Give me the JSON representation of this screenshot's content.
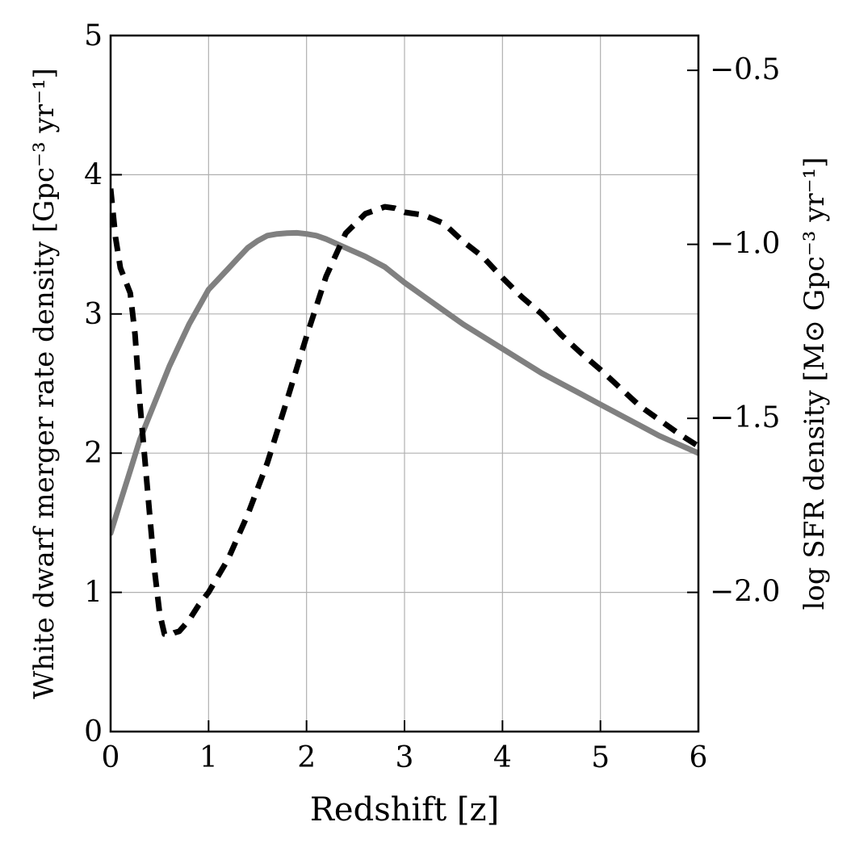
{
  "chart_data": {
    "type": "line",
    "xlabel": "Redshift [z]",
    "ylabel_left": "White dwarf merger rate density [Gpc⁻³ yr⁻¹]",
    "ylabel_right": "log SFR density [M⊙ Gpc⁻³ yr⁻¹]",
    "xlim": [
      0,
      6
    ],
    "ylim_left": [
      0,
      5
    ],
    "ylim_right": [
      -2.4,
      -0.4
    ],
    "x_ticks": [
      0,
      1,
      2,
      3,
      4,
      5,
      6
    ],
    "y_left_ticks": [
      0,
      1,
      2,
      3,
      4,
      5
    ],
    "y_right_ticks": [
      -2.0,
      -1.5,
      -1.0,
      -0.5
    ],
    "x_tick_labels": [
      "0",
      "1",
      "2",
      "3",
      "4",
      "5",
      "6"
    ],
    "y_left_tick_labels": [
      "0",
      "1",
      "2",
      "3",
      "4",
      "5"
    ],
    "y_right_tick_labels": [
      "−2.0",
      "−1.5",
      "−1.0",
      "−0.5"
    ],
    "grid": true,
    "series": [
      {
        "axis": "right",
        "color": "#808080",
        "style": "solid",
        "x": [
          0.0,
          0.1,
          0.2,
          0.3,
          0.4,
          0.5,
          0.6,
          0.7,
          0.8,
          0.9,
          1.0,
          1.1,
          1.2,
          1.3,
          1.4,
          1.5,
          1.6,
          1.7,
          1.8,
          1.9,
          2.0,
          2.1,
          2.2,
          2.4,
          2.6,
          2.8,
          3.0,
          3.2,
          3.4,
          3.6,
          3.8,
          4.0,
          4.2,
          4.4,
          4.6,
          4.8,
          5.0,
          5.2,
          5.4,
          5.6,
          5.8,
          6.0
        ],
        "y": [
          -1.83,
          -1.74,
          -1.65,
          -1.56,
          -1.49,
          -1.42,
          -1.35,
          -1.29,
          -1.23,
          -1.18,
          -1.13,
          -1.1,
          -1.07,
          -1.04,
          -1.01,
          -0.99,
          -0.975,
          -0.97,
          -0.968,
          -0.967,
          -0.97,
          -0.975,
          -0.985,
          -1.01,
          -1.035,
          -1.065,
          -1.11,
          -1.15,
          -1.19,
          -1.23,
          -1.265,
          -1.3,
          -1.335,
          -1.37,
          -1.4,
          -1.43,
          -1.46,
          -1.49,
          -1.52,
          -1.55,
          -1.575,
          -1.6
        ]
      },
      {
        "axis": "left",
        "color": "#000000",
        "style": "dashed",
        "x": [
          0.0,
          0.05,
          0.1,
          0.2,
          0.25,
          0.3,
          0.35,
          0.4,
          0.45,
          0.5,
          0.55,
          0.6,
          0.65,
          0.7,
          0.8,
          0.9,
          1.0,
          1.2,
          1.4,
          1.6,
          1.8,
          2.0,
          2.2,
          2.4,
          2.6,
          2.8,
          2.9,
          3.0,
          3.2,
          3.4,
          3.6,
          3.8,
          4.0,
          4.2,
          4.4,
          4.6,
          4.8,
          5.0,
          5.2,
          5.4,
          5.6,
          5.8,
          6.0
        ],
        "y": [
          3.9,
          3.55,
          3.33,
          3.15,
          2.85,
          2.35,
          1.95,
          1.55,
          1.15,
          0.85,
          0.7,
          0.69,
          0.71,
          0.72,
          0.8,
          0.91,
          1.0,
          1.24,
          1.56,
          1.93,
          2.38,
          2.84,
          3.27,
          3.58,
          3.72,
          3.77,
          3.76,
          3.73,
          3.71,
          3.65,
          3.52,
          3.41,
          3.26,
          3.12,
          3.0,
          2.85,
          2.72,
          2.6,
          2.47,
          2.34,
          2.24,
          2.14,
          2.05
        ]
      }
    ]
  }
}
